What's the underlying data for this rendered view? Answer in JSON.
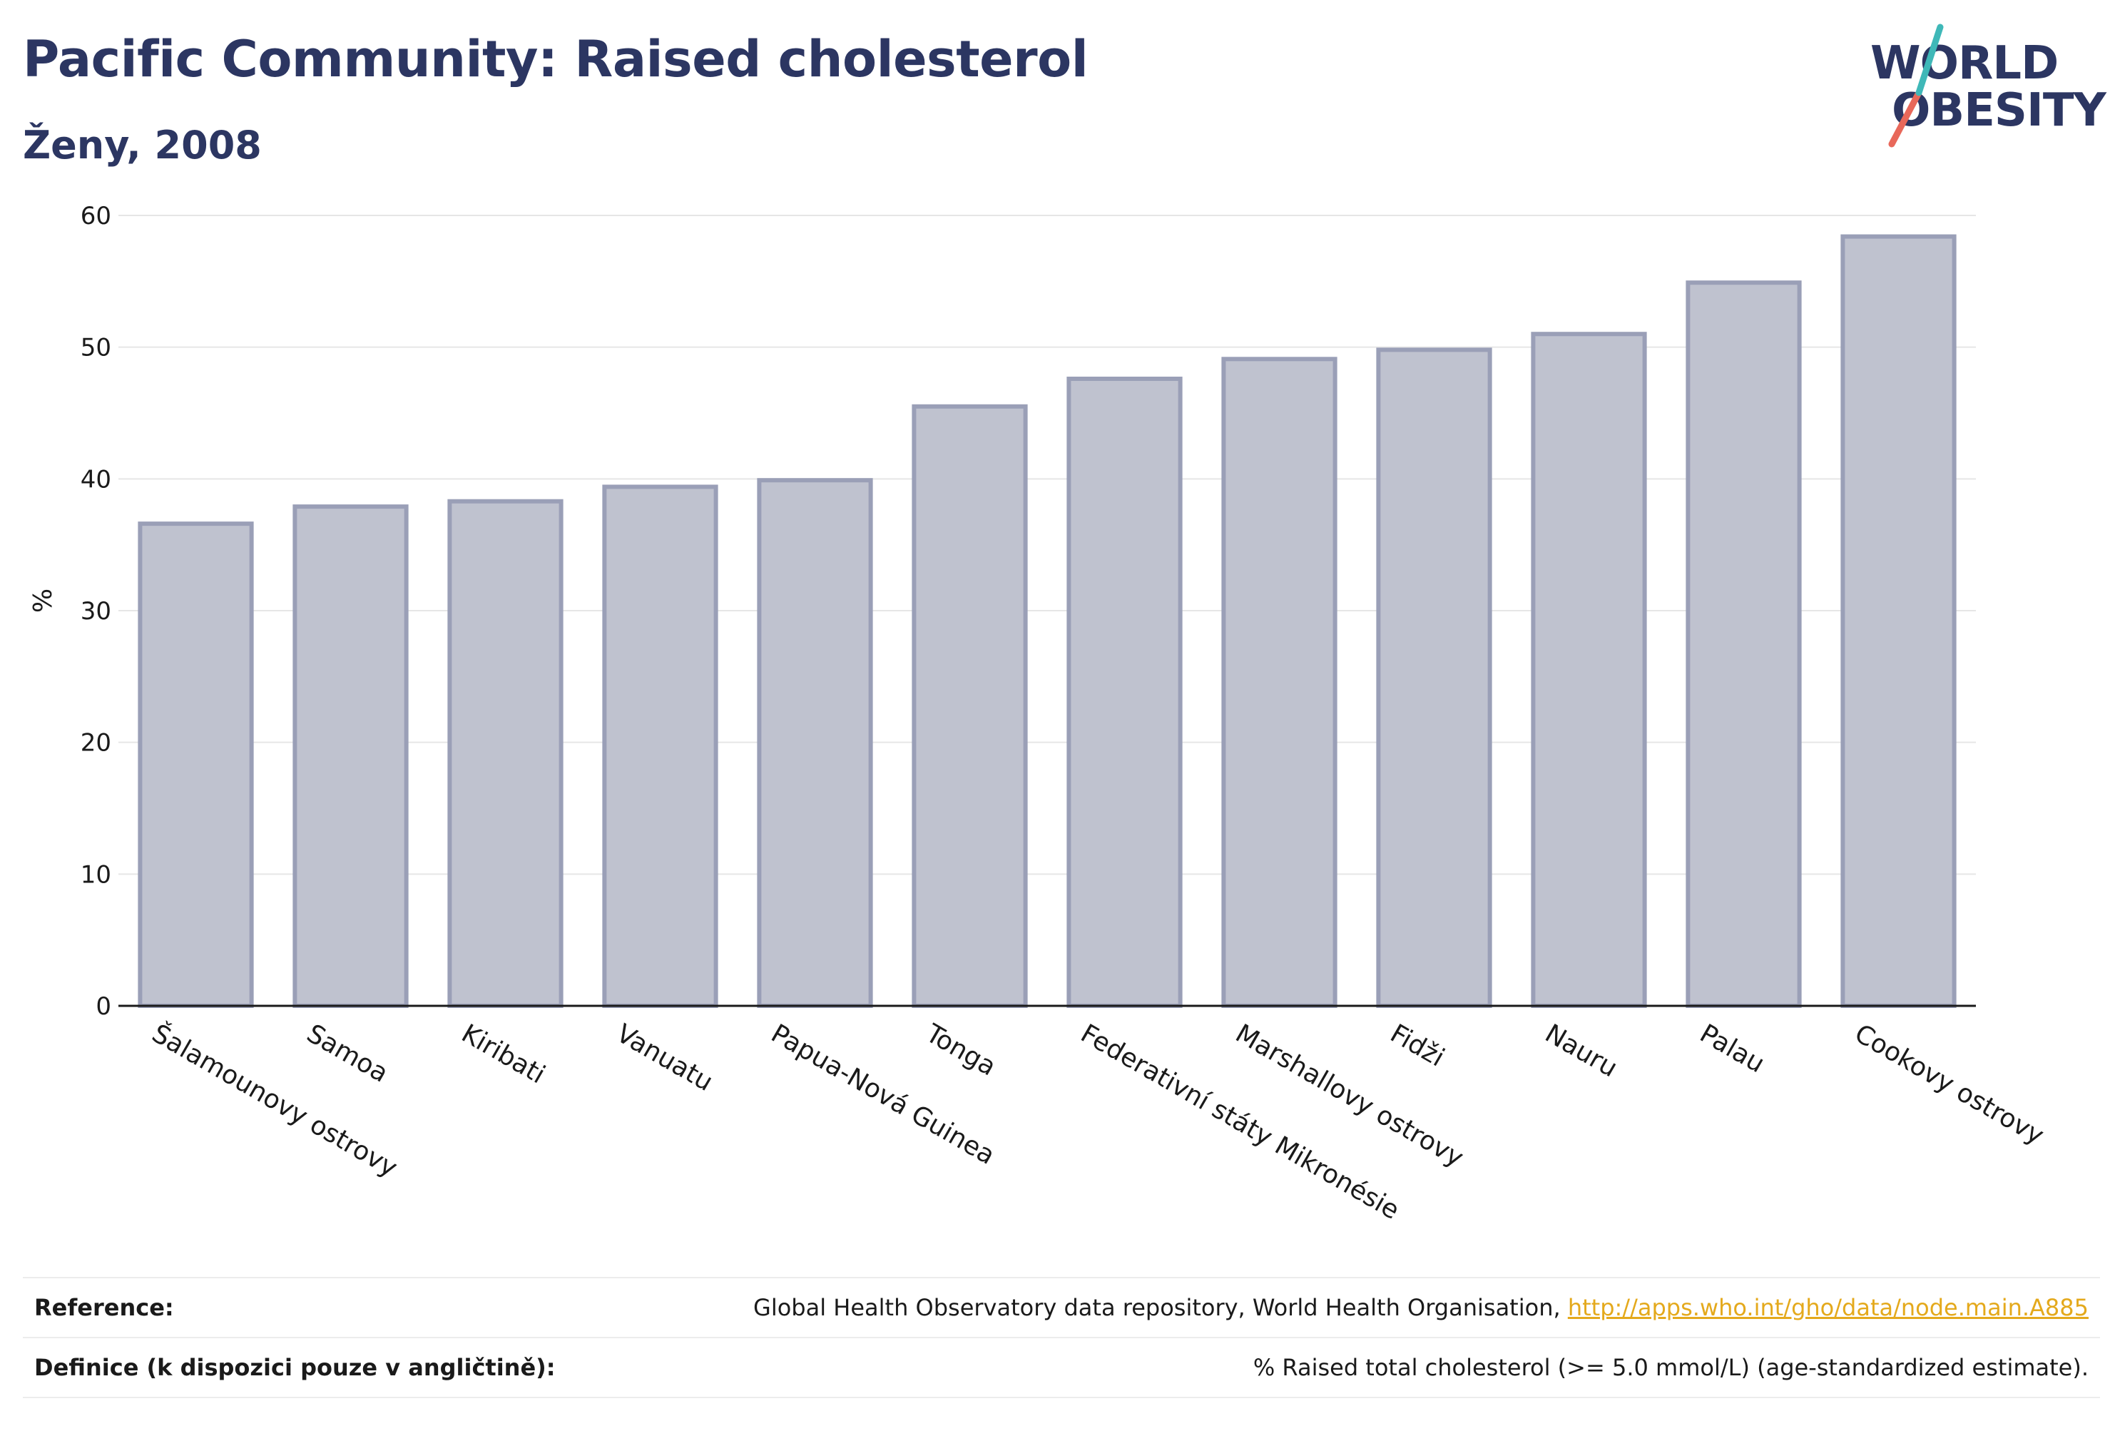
{
  "header": {
    "title": "Pacific Community: Raised cholesterol",
    "subtitle": "Ženy, 2008"
  },
  "logo": {
    "line1": "WORLD",
    "line2": "OBESITY",
    "slash_colors": [
      "#e8685a",
      "#3fb8b8"
    ]
  },
  "colors": {
    "bar_fill": "#bfc2cf",
    "bar_stroke": "#9a9fb7",
    "text": "#2c3662",
    "link": "#e4a91c"
  },
  "chart_data": {
    "type": "bar",
    "categories": [
      "Šalamounovy ostrovy",
      "Samoa",
      "Kiribati",
      "Vanuatu",
      "Papua-Nová Guinea",
      "Tonga",
      "Federativní státy Mikronésie",
      "Marshallovy ostrovy",
      "Fidži",
      "Nauru",
      "Palau",
      "Cookovy ostrovy"
    ],
    "values": [
      36.6,
      37.9,
      38.3,
      39.4,
      39.9,
      45.5,
      47.6,
      49.1,
      49.8,
      51.0,
      54.9,
      58.4
    ],
    "title": "Pacific Community: Raised cholesterol",
    "subtitle": "Ženy, 2008",
    "xlabel": "",
    "ylabel": "%",
    "ylim": [
      0,
      60
    ],
    "yticks": [
      0,
      10,
      20,
      30,
      40,
      50,
      60
    ],
    "grid": true,
    "legend": "none"
  },
  "reference": {
    "rows": [
      {
        "label": "Reference:",
        "text": "Global Health Observatory data repository, World Health Organisation, ",
        "link": "http://apps.who.int/gho/data/node.main.A885"
      },
      {
        "label": "Definice (k dispozici pouze v angličtině):",
        "text": "% Raised total cholesterol (>= 5.0 mmol/L) (age-standardized estimate).",
        "link": ""
      }
    ]
  }
}
